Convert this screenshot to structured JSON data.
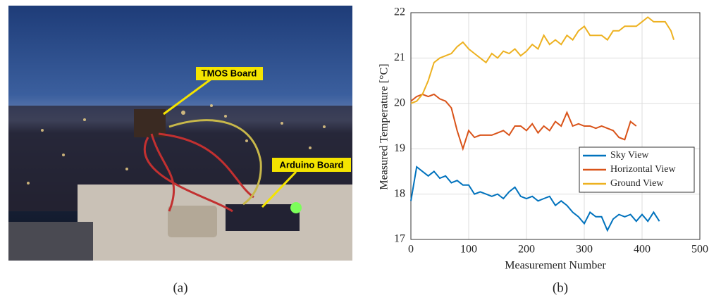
{
  "photo": {
    "labels": [
      "TMOS Board",
      "Arduino Board"
    ],
    "caption": "(a)"
  },
  "chart_data": {
    "type": "line",
    "caption": "(b)",
    "x_label": "Measurement Number",
    "y_label": "Measured Temperature [°C]",
    "xlim": [
      0,
      500
    ],
    "xticks": [
      0,
      100,
      200,
      300,
      400,
      500
    ],
    "ylim": [
      17,
      22
    ],
    "yticks": [
      17,
      18,
      19,
      20,
      21,
      22
    ],
    "grid": true,
    "legend": "right",
    "series": [
      {
        "name": "Sky View",
        "color": "#0072bd",
        "x": [
          0,
          10,
          20,
          30,
          40,
          50,
          60,
          70,
          80,
          90,
          100,
          110,
          120,
          130,
          140,
          150,
          160,
          170,
          180,
          190,
          200,
          210,
          220,
          230,
          240,
          250,
          260,
          270,
          280,
          290,
          300,
          310,
          320,
          330,
          340,
          350,
          360,
          370,
          380,
          390,
          400,
          410,
          420,
          430
        ],
        "values": [
          17.85,
          18.6,
          18.5,
          18.4,
          18.5,
          18.35,
          18.4,
          18.25,
          18.3,
          18.2,
          18.2,
          18.0,
          18.05,
          18.0,
          17.95,
          18.0,
          17.9,
          18.05,
          18.15,
          17.95,
          17.9,
          17.95,
          17.85,
          17.9,
          17.95,
          17.75,
          17.85,
          17.75,
          17.6,
          17.5,
          17.35,
          17.6,
          17.5,
          17.5,
          17.2,
          17.45,
          17.55,
          17.5,
          17.55,
          17.4,
          17.55,
          17.4,
          17.6,
          17.4
        ]
      },
      {
        "name": "Horizontal View",
        "color": "#d95319",
        "x": [
          0,
          10,
          20,
          30,
          40,
          50,
          60,
          70,
          80,
          90,
          100,
          110,
          120,
          130,
          140,
          150,
          160,
          170,
          180,
          190,
          200,
          210,
          220,
          230,
          240,
          250,
          260,
          270,
          280,
          290,
          300,
          310,
          320,
          330,
          340,
          350,
          360,
          370,
          380,
          390
        ],
        "values": [
          20.05,
          20.15,
          20.2,
          20.15,
          20.2,
          20.1,
          20.05,
          19.9,
          19.4,
          19.0,
          19.4,
          19.25,
          19.3,
          19.3,
          19.3,
          19.35,
          19.4,
          19.3,
          19.5,
          19.5,
          19.4,
          19.55,
          19.35,
          19.5,
          19.4,
          19.6,
          19.5,
          19.8,
          19.5,
          19.55,
          19.5,
          19.5,
          19.45,
          19.5,
          19.45,
          19.4,
          19.25,
          19.2,
          19.6,
          19.5
        ]
      },
      {
        "name": "Ground View",
        "color": "#edb120",
        "x": [
          0,
          10,
          20,
          30,
          40,
          50,
          60,
          70,
          80,
          90,
          100,
          110,
          120,
          130,
          140,
          150,
          160,
          170,
          180,
          190,
          200,
          210,
          220,
          230,
          240,
          250,
          260,
          270,
          280,
          290,
          300,
          310,
          320,
          330,
          340,
          350,
          360,
          370,
          380,
          390,
          400,
          410,
          420,
          430,
          440,
          450,
          455
        ],
        "values": [
          20.0,
          20.05,
          20.2,
          20.5,
          20.9,
          21.0,
          21.05,
          21.1,
          21.25,
          21.35,
          21.2,
          21.1,
          21.0,
          20.9,
          21.1,
          21.0,
          21.15,
          21.1,
          21.2,
          21.05,
          21.15,
          21.3,
          21.2,
          21.5,
          21.3,
          21.4,
          21.3,
          21.5,
          21.4,
          21.6,
          21.7,
          21.5,
          21.5,
          21.5,
          21.4,
          21.6,
          21.6,
          21.7,
          21.7,
          21.7,
          21.8,
          21.9,
          21.8,
          21.8,
          21.8,
          21.6,
          21.4
        ]
      }
    ]
  }
}
